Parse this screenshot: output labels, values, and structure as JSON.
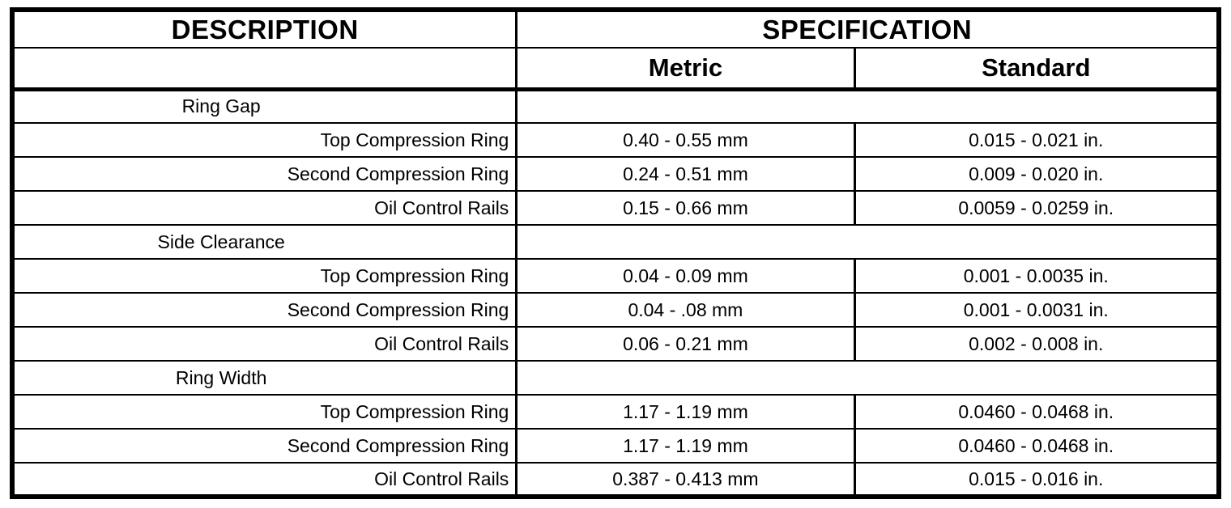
{
  "colors": {
    "border": "#000000",
    "background": "#ffffff",
    "text": "#000000"
  },
  "table": {
    "header": {
      "description": "DESCRIPTION",
      "specification": "SPECIFICATION",
      "metric": "Metric",
      "standard": "Standard"
    },
    "sections": [
      {
        "name": "Ring Gap",
        "rows": [
          {
            "label": "Top Compression Ring",
            "metric": "0.40 - 0.55 mm",
            "standard": "0.015 - 0.021 in."
          },
          {
            "label": "Second Compression Ring",
            "metric": "0.24 - 0.51 mm",
            "standard": "0.009 - 0.020 in."
          },
          {
            "label": "Oil Control Rails",
            "metric": "0.15 - 0.66 mm",
            "standard": "0.0059 - 0.0259 in."
          }
        ]
      },
      {
        "name": "Side Clearance",
        "rows": [
          {
            "label": "Top Compression Ring",
            "metric": "0.04 - 0.09 mm",
            "standard": "0.001 - 0.0035 in."
          },
          {
            "label": "Second Compression Ring",
            "metric": "0.04 - .08 mm",
            "standard": "0.001 - 0.0031 in."
          },
          {
            "label": "Oil Control Rails",
            "metric": "0.06 - 0.21 mm",
            "standard": "0.002 - 0.008 in."
          }
        ]
      },
      {
        "name": "Ring Width",
        "rows": [
          {
            "label": "Top Compression Ring",
            "metric": "1.17 - 1.19 mm",
            "standard": "0.0460 - 0.0468 in."
          },
          {
            "label": "Second Compression Ring",
            "metric": "1.17 - 1.19 mm",
            "standard": "0.0460 - 0.0468 in."
          },
          {
            "label": "Oil Control Rails",
            "metric": "0.387 - 0.413 mm",
            "standard": "0.015 - 0.016 in."
          }
        ]
      }
    ]
  }
}
